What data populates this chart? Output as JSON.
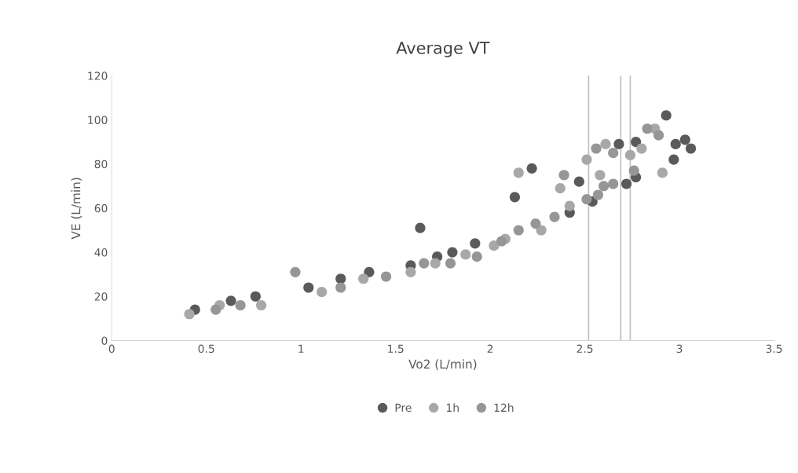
{
  "chart_data": {
    "type": "scatter",
    "title": "Average VT",
    "xlabel": "Vo2 (L/min)",
    "ylabel": "VE (L/min)",
    "xlim": [
      0,
      3.5
    ],
    "xticks": [
      0,
      0.5,
      1,
      1.5,
      2,
      2.5,
      3,
      3.5
    ],
    "ylim": [
      0,
      120
    ],
    "yticks": [
      0,
      20,
      40,
      60,
      80,
      100,
      120
    ],
    "marker": "circle",
    "legend": "bottom",
    "grid": false,
    "ref_lines": [
      {
        "axis": "x",
        "value": 2.52,
        "color": "#c0c0c0"
      },
      {
        "axis": "x",
        "value": 2.69,
        "color": "#c0c0c0"
      },
      {
        "axis": "x",
        "value": 2.74,
        "color": "#c0c0c0"
      }
    ],
    "series": [
      {
        "name": "Pre",
        "color": "#5a5a5a",
        "x": [
          0.44,
          0.63,
          0.76,
          1.04,
          1.21,
          1.36,
          1.63,
          1.58,
          1.72,
          1.8,
          1.92,
          2.13,
          2.22,
          2.42,
          2.47,
          2.54,
          2.68,
          2.72,
          2.93,
          2.77,
          2.98,
          3.03,
          3.06,
          2.97,
          2.77
        ],
        "values": [
          14,
          18,
          20,
          24,
          28,
          31,
          51,
          34,
          38,
          40,
          44,
          65,
          78,
          58,
          72,
          63,
          89,
          71,
          102,
          90,
          89,
          91,
          87,
          82,
          74
        ]
      },
      {
        "name": "1h",
        "color": "#a8a8a8",
        "x": [
          0.41,
          0.57,
          0.79,
          1.11,
          1.33,
          1.58,
          1.71,
          1.87,
          2.02,
          2.08,
          2.15,
          2.27,
          2.37,
          2.42,
          2.51,
          2.61,
          2.58,
          2.74,
          2.8,
          2.87,
          2.91
        ],
        "values": [
          12,
          16,
          16,
          22,
          28,
          31,
          35,
          39,
          43,
          46,
          76,
          50,
          69,
          61,
          82,
          89,
          75,
          84,
          87,
          96,
          76
        ]
      },
      {
        "name": "12h",
        "color": "#969696",
        "x": [
          0.55,
          0.68,
          0.97,
          1.21,
          1.45,
          1.65,
          1.79,
          1.93,
          2.06,
          2.15,
          2.24,
          2.34,
          2.39,
          2.51,
          2.56,
          2.6,
          2.57,
          2.65,
          2.65,
          2.76,
          2.83,
          2.89
        ],
        "values": [
          14,
          16,
          31,
          24,
          29,
          35,
          35,
          38,
          45,
          50,
          53,
          56,
          75,
          64,
          87,
          70,
          66,
          85,
          71,
          77,
          96,
          93
        ]
      }
    ]
  }
}
